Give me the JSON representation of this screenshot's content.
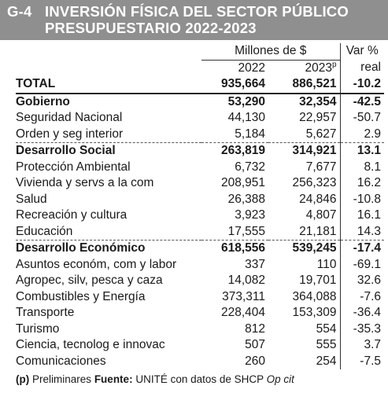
{
  "header": {
    "code": "G-4",
    "title_line1": "INVERSIÓN FÍSICA DEL SECTOR PÚBLICO",
    "title_line2": "PRESUPUESTARIO 2022-2023"
  },
  "columns": {
    "units": "Millones de $",
    "var_line1": "Var %",
    "var_line2": "real",
    "year1": "2022",
    "year2": "2023",
    "year2_sup": "p"
  },
  "rows": [
    {
      "label": "TOTAL",
      "v2022": "935,664",
      "v2023": "886,521",
      "var": "-10.2",
      "kind": "total"
    },
    {
      "label": "Gobierno",
      "v2022": "53,290",
      "v2023": "32,354",
      "var": "-42.5",
      "kind": "group"
    },
    {
      "label": "Seguridad Nacional",
      "v2022": "44,130",
      "v2023": "22,957",
      "var": "-50.7",
      "kind": "item"
    },
    {
      "label": "Orden y seg interior",
      "v2022": "5,184",
      "v2023": "5,627",
      "var": "2.9",
      "kind": "item"
    },
    {
      "label": "Desarrollo Social",
      "v2022": "263,819",
      "v2023": "314,921",
      "var": "13.1",
      "kind": "group"
    },
    {
      "label": "Protección Ambiental",
      "v2022": "6,732",
      "v2023": "7,677",
      "var": "8.1",
      "kind": "item"
    },
    {
      "label": "Vivienda y servs a la com",
      "v2022": "208,951",
      "v2023": "256,323",
      "var": "16.2",
      "kind": "item"
    },
    {
      "label": "Salud",
      "v2022": "26,388",
      "v2023": "24,846",
      "var": "-10.8",
      "kind": "item"
    },
    {
      "label": "Recreación y cultura",
      "v2022": "3,923",
      "v2023": "4,807",
      "var": "16.1",
      "kind": "item"
    },
    {
      "label": "Educación",
      "v2022": "17,555",
      "v2023": "21,181",
      "var": "14.3",
      "kind": "item"
    },
    {
      "label": "Desarrollo Económico",
      "v2022": "618,556",
      "v2023": "539,245",
      "var": "-17.4",
      "kind": "group"
    },
    {
      "label": "Asuntos económ, com y labor",
      "v2022": "337",
      "v2023": "110",
      "var": "-69.1",
      "kind": "item"
    },
    {
      "label": "Agropec, silv, pesca y caza",
      "v2022": "14,082",
      "v2023": "19,701",
      "var": "32.6",
      "kind": "item"
    },
    {
      "label": "Combustibles y Energía",
      "v2022": "373,311",
      "v2023": "364,088",
      "var": "-7.6",
      "kind": "item"
    },
    {
      "label": "Transporte",
      "v2022": "228,404",
      "v2023": "153,309",
      "var": "-36.4",
      "kind": "item"
    },
    {
      "label": "Turismo",
      "v2022": "812",
      "v2023": "554",
      "var": "-35.3",
      "kind": "item"
    },
    {
      "label": "Ciencia, tecnolog e innovac",
      "v2022": "507",
      "v2023": "555",
      "var": "3.7",
      "kind": "item"
    },
    {
      "label": "Comunicaciones",
      "v2022": "260",
      "v2023": "254",
      "var": "-7.5",
      "kind": "item"
    }
  ],
  "footnote": {
    "marker": "(p)",
    "prelim": "Preliminares",
    "source_label": "Fuente:",
    "source_text": "UNITÉ con datos de SHCP",
    "source_ref": "Op cit"
  }
}
